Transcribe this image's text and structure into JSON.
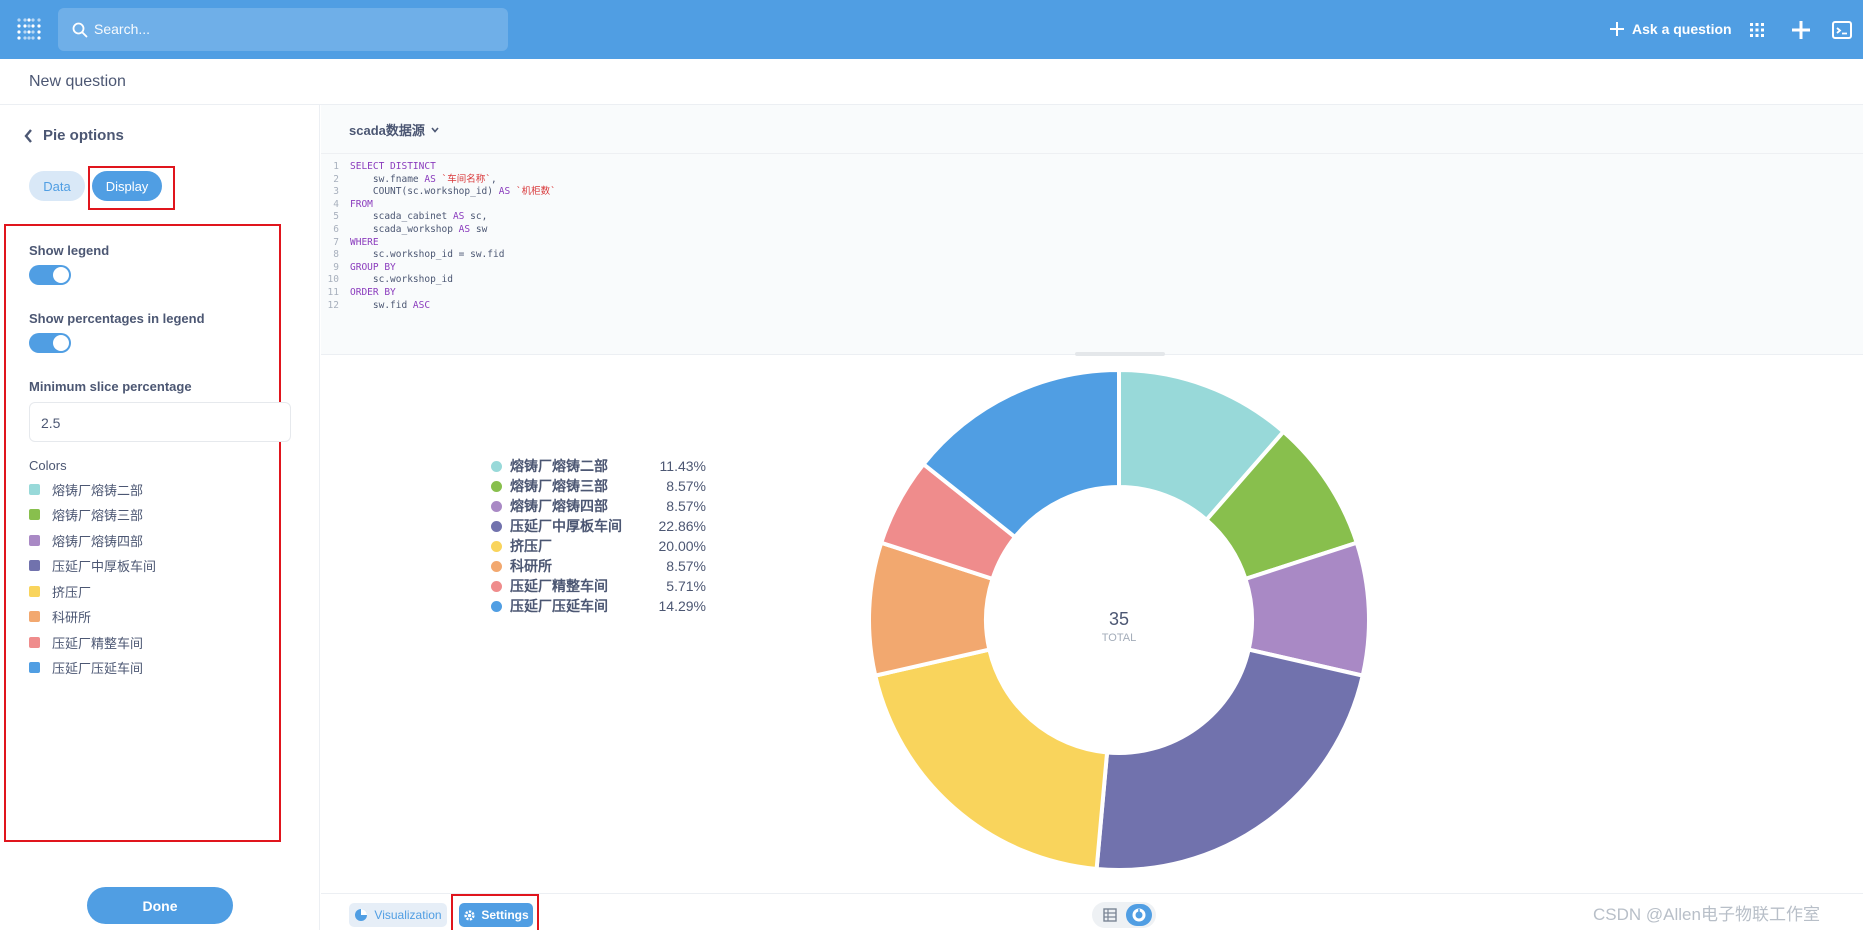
{
  "topnav": {
    "search_placeholder": "Search...",
    "ask_label": "Ask a question",
    "icons": [
      "metabase-logo-icon",
      "search-icon",
      "plus-icon",
      "grid-icon",
      "add-icon",
      "terminal-icon"
    ]
  },
  "header": {
    "title": "New question"
  },
  "sidebar": {
    "back_label": "Pie options",
    "tab_data": "Data",
    "tab_display": "Display",
    "show_legend_label": "Show legend",
    "show_legend_on": true,
    "show_pct_label": "Show percentages in legend",
    "show_pct_on": true,
    "min_slice_label": "Minimum slice percentage",
    "min_slice_value": "2.5",
    "colors_label": "Colors",
    "color_items": [
      {
        "label": "熔铸厂熔铸二部",
        "color": "#98d9d9"
      },
      {
        "label": "熔铸厂熔铸三部",
        "color": "#88bf4d"
      },
      {
        "label": "熔铸厂熔铸四部",
        "color": "#a989c5"
      },
      {
        "label": "压延厂中厚板车间",
        "color": "#7172ad"
      },
      {
        "label": "挤压厂",
        "color": "#f9d45c"
      },
      {
        "label": "科研所",
        "color": "#f2a86f"
      },
      {
        "label": "压延厂精整车间",
        "color": "#ef8c8c"
      },
      {
        "label": "压延厂压延车间",
        "color": "#509ee3"
      }
    ],
    "done_label": "Done"
  },
  "editor": {
    "database": "scada数据源",
    "sql_lines": [
      [
        {
          "t": "SELECT DISTINCT",
          "c": "kw"
        }
      ],
      [
        {
          "t": "    sw.fname "
        },
        {
          "t": "AS",
          "c": "kw"
        },
        {
          "t": " `车间名称`",
          "c": "str"
        },
        {
          "t": ","
        }
      ],
      [
        {
          "t": "    COUNT(sc.workshop_id) "
        },
        {
          "t": "AS",
          "c": "kw"
        },
        {
          "t": " `机柜数`",
          "c": "str"
        }
      ],
      [
        {
          "t": "FROM",
          "c": "kw"
        }
      ],
      [
        {
          "t": "    scada_cabinet "
        },
        {
          "t": "AS",
          "c": "kw"
        },
        {
          "t": " sc,"
        }
      ],
      [
        {
          "t": "    scada_workshop "
        },
        {
          "t": "AS",
          "c": "kw"
        },
        {
          "t": " sw"
        }
      ],
      [
        {
          "t": "WHERE",
          "c": "kw"
        }
      ],
      [
        {
          "t": "    sc.workshop_id = sw.fid"
        }
      ],
      [
        {
          "t": "GROUP BY",
          "c": "kw"
        }
      ],
      [
        {
          "t": "    sc.workshop_id"
        }
      ],
      [
        {
          "t": "ORDER BY",
          "c": "kw"
        }
      ],
      [
        {
          "t": "    sw.fid "
        },
        {
          "t": "ASC",
          "c": "kw"
        }
      ]
    ]
  },
  "chart_data": {
    "type": "pie",
    "donut": true,
    "total_value": "35",
    "total_label": "TOTAL",
    "legend_placement": "left",
    "slices": [
      {
        "label": "熔铸厂熔铸二部",
        "value": 4,
        "percent": "11.43%",
        "color": "#98d9d9"
      },
      {
        "label": "熔铸厂熔铸三部",
        "value": 3,
        "percent": "8.57%",
        "color": "#88bf4d"
      },
      {
        "label": "熔铸厂熔铸四部",
        "value": 3,
        "percent": "8.57%",
        "color": "#a989c5"
      },
      {
        "label": "压延厂中厚板车间",
        "value": 8,
        "percent": "22.86%",
        "color": "#7172ad"
      },
      {
        "label": "挤压厂",
        "value": 7,
        "percent": "20.00%",
        "color": "#f9d45c"
      },
      {
        "label": "科研所",
        "value": 3,
        "percent": "8.57%",
        "color": "#f2a86f"
      },
      {
        "label": "压延厂精整车间",
        "value": 2,
        "percent": "5.71%",
        "color": "#ef8c8c"
      },
      {
        "label": "压延厂压延车间",
        "value": 5,
        "percent": "14.29%",
        "color": "#509ee3"
      }
    ]
  },
  "footer": {
    "visualization_label": "Visualization",
    "settings_label": "Settings"
  },
  "watermark": "CSDN @Allen电子物联工作室"
}
